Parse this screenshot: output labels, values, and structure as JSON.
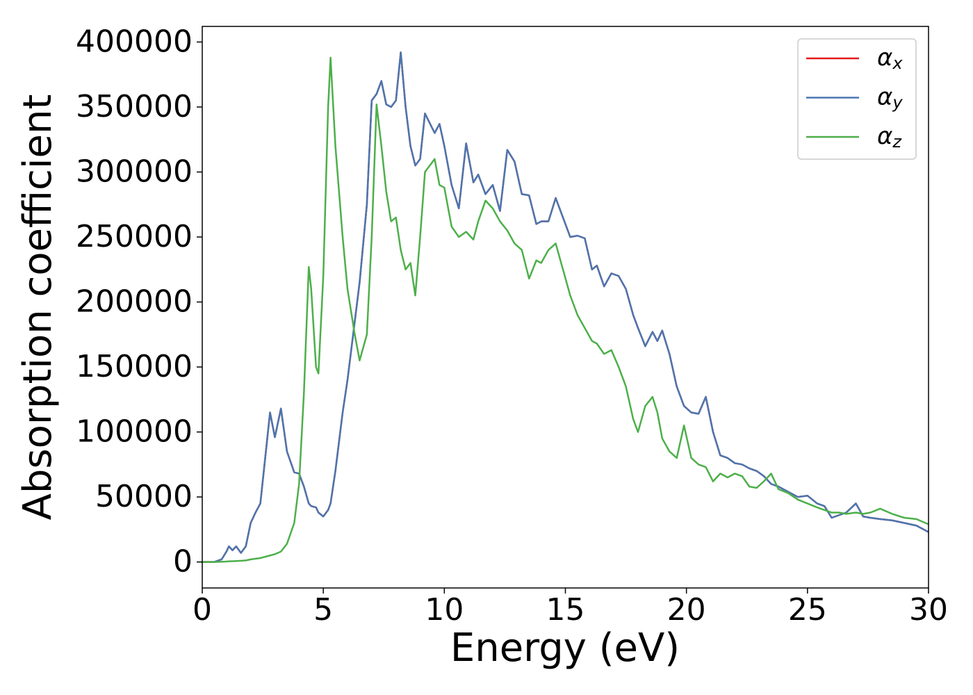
{
  "chart_data": {
    "type": "line",
    "xlabel": "Energy (eV)",
    "ylabel": "Absorption coefficient",
    "x": [
      0,
      0.5,
      0.8,
      1.0,
      1.1,
      1.25,
      1.4,
      1.6,
      1.8,
      2.0,
      2.2,
      2.4,
      2.6,
      2.8,
      3.0,
      3.25,
      3.5,
      3.8,
      4.0,
      4.2,
      4.4,
      4.5,
      4.7,
      4.8,
      5.0,
      5.2,
      5.3,
      5.5,
      5.8,
      6.0,
      6.3,
      6.5,
      6.8,
      7.0,
      7.2,
      7.4,
      7.6,
      7.8,
      8.0,
      8.2,
      8.4,
      8.6,
      8.8,
      9.0,
      9.2,
      9.6,
      9.8,
      10.0,
      10.3,
      10.6,
      10.9,
      11.2,
      11.4,
      11.7,
      12.0,
      12.3,
      12.6,
      12.9,
      13.2,
      13.5,
      13.8,
      14.0,
      14.3,
      14.6,
      14.9,
      15.2,
      15.5,
      15.8,
      16.1,
      16.3,
      16.6,
      16.9,
      17.2,
      17.5,
      17.8,
      18.0,
      18.3,
      18.6,
      18.8,
      19.0,
      19.3,
      19.6,
      19.9,
      20.2,
      20.5,
      20.8,
      21.1,
      21.4,
      21.7,
      22.0,
      22.3,
      22.6,
      22.9,
      23.2,
      23.5,
      23.8,
      24.2,
      24.6,
      25.0,
      25.4,
      25.7,
      26.0,
      26.3,
      26.6,
      27.0,
      27.3,
      27.6,
      28.0,
      28.5,
      29.0,
      29.5,
      30.0
    ],
    "series": [
      {
        "name": "αx",
        "color": "#e41a1c",
        "values": [
          0,
          0,
          2000,
          8000,
          12000,
          9000,
          12000,
          7000,
          12000,
          30000,
          38000,
          45000,
          80000,
          115000,
          96000,
          118000,
          85000,
          69000,
          68000,
          58000,
          45000,
          43000,
          42000,
          38000,
          35000,
          40000,
          45000,
          70000,
          115000,
          140000,
          185000,
          215000,
          275000,
          355000,
          360000,
          370000,
          352000,
          350000,
          355000,
          392000,
          350000,
          320000,
          305000,
          310000,
          345000,
          330000,
          337000,
          320000,
          290000,
          272000,
          322000,
          292000,
          298000,
          283000,
          290000,
          270000,
          317000,
          308000,
          283000,
          282000,
          260000,
          262000,
          262000,
          280000,
          265000,
          250000,
          251000,
          249000,
          225000,
          228000,
          212000,
          222000,
          220000,
          210000,
          190000,
          180000,
          166000,
          177000,
          170000,
          178000,
          160000,
          135000,
          120000,
          115000,
          114000,
          127000,
          100000,
          82000,
          80000,
          76000,
          75000,
          72000,
          70000,
          66000,
          60000,
          58000,
          54000,
          50000,
          51000,
          45000,
          43000,
          34000,
          36000,
          38000,
          45000,
          35000,
          34000,
          33000,
          32000,
          30000,
          28000,
          23000
        ]
      },
      {
        "name": "αy",
        "color": "#4a76b0",
        "values": [
          0,
          0,
          2000,
          8000,
          12000,
          9000,
          12000,
          7000,
          12000,
          30000,
          38000,
          45000,
          80000,
          115000,
          96000,
          118000,
          85000,
          69000,
          68000,
          58000,
          45000,
          43000,
          42000,
          38000,
          35000,
          40000,
          45000,
          70000,
          115000,
          140000,
          185000,
          215000,
          275000,
          355000,
          360000,
          370000,
          352000,
          350000,
          355000,
          392000,
          350000,
          320000,
          305000,
          310000,
          345000,
          330000,
          337000,
          320000,
          290000,
          272000,
          322000,
          292000,
          298000,
          283000,
          290000,
          270000,
          317000,
          308000,
          283000,
          282000,
          260000,
          262000,
          262000,
          280000,
          265000,
          250000,
          251000,
          249000,
          225000,
          228000,
          212000,
          222000,
          220000,
          210000,
          190000,
          180000,
          166000,
          177000,
          170000,
          178000,
          160000,
          135000,
          120000,
          115000,
          114000,
          127000,
          100000,
          82000,
          80000,
          76000,
          75000,
          72000,
          70000,
          66000,
          60000,
          58000,
          54000,
          50000,
          51000,
          45000,
          43000,
          34000,
          36000,
          38000,
          45000,
          35000,
          34000,
          33000,
          32000,
          30000,
          28000,
          23000
        ]
      },
      {
        "name": "αz",
        "color": "#4daf4a",
        "values": [
          0,
          0,
          200,
          300,
          500,
          600,
          700,
          900,
          1200,
          2000,
          2500,
          3000,
          4000,
          5000,
          6000,
          8000,
          14000,
          30000,
          60000,
          130000,
          227000,
          210000,
          150000,
          145000,
          220000,
          350000,
          388000,
          320000,
          250000,
          210000,
          175000,
          155000,
          175000,
          250000,
          352000,
          320000,
          285000,
          262000,
          265000,
          240000,
          225000,
          230000,
          205000,
          250000,
          300000,
          310000,
          290000,
          288000,
          258000,
          250000,
          254000,
          248000,
          262000,
          278000,
          272000,
          262000,
          255000,
          245000,
          240000,
          218000,
          232000,
          230000,
          240000,
          245000,
          225000,
          205000,
          190000,
          180000,
          170000,
          168000,
          160000,
          163000,
          150000,
          135000,
          110000,
          100000,
          120000,
          127000,
          115000,
          95000,
          85000,
          80000,
          105000,
          80000,
          75000,
          73000,
          62000,
          68000,
          65000,
          68000,
          66000,
          58000,
          57000,
          62000,
          68000,
          56000,
          53000,
          48000,
          45000,
          42000,
          40000,
          38000,
          38000,
          37000,
          38000,
          37000,
          38000,
          41000,
          37000,
          34000,
          33000,
          29000
        ]
      }
    ],
    "xlim": [
      0,
      30
    ],
    "xticks": [
      0,
      5,
      10,
      15,
      20,
      25,
      30
    ],
    "ylim": [
      -20000,
      412000
    ],
    "yticks": [
      0,
      50000,
      100000,
      150000,
      200000,
      250000,
      300000,
      350000,
      400000
    ],
    "grid": false,
    "legend": "upper right"
  }
}
